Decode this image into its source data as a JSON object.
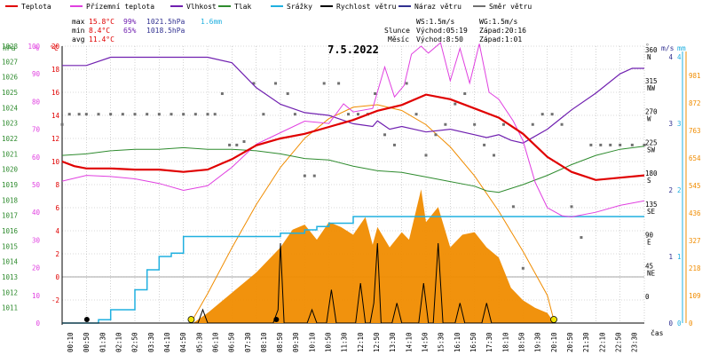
{
  "chart_data": {
    "type": "line",
    "title": "7.5.2022",
    "legend": [
      {
        "name": "Teplota",
        "color": "#e00000"
      },
      {
        "name": "Přízemní teplota",
        "color": "#e040e0"
      },
      {
        "name": "Vlhkost",
        "color": "#7020b0"
      },
      {
        "name": "Tlak",
        "color": "#2e8b2e"
      },
      {
        "name": "Srážky",
        "color": "#20b0e0"
      },
      {
        "name": "Rychlost větru",
        "color": "#000000"
      },
      {
        "name": "Náraz větru",
        "color": "#303090"
      },
      {
        "name": "Směr větru",
        "color": "#707070"
      }
    ],
    "stats": {
      "max": {
        "label": "max",
        "temp": "15.8°C",
        "hum": "99%",
        "press": "1021.5hPa",
        "rain": "1.6mm"
      },
      "min": {
        "label": "min",
        "temp": "8.4°C",
        "hum": "65%",
        "press": "1018.5hPa"
      },
      "avg": {
        "label": "avg",
        "temp": "11.4°C"
      }
    },
    "astro": {
      "ws": "WS:1.5m/s",
      "wg": "WG:1.5m/s",
      "sun_label": "Slunce",
      "sunrise": "Východ:05:19",
      "sunset": "Západ:20:16",
      "moon_label": "Měsíc",
      "moonrise": "Východ:8:50",
      "moonset": "Západ:1:01"
    },
    "axes": {
      "hpa": {
        "label": "hPa",
        "ticks": [
          "1011",
          "1012",
          "1013",
          "1014",
          "1015",
          "1016",
          "1017",
          "1018",
          "1019",
          "1020",
          "1021",
          "1022",
          "1023",
          "1024",
          "1025",
          "1026",
          "1027",
          "1028"
        ]
      },
      "pct": {
        "label": "%",
        "ticks": [
          "0",
          "10",
          "20",
          "30",
          "40",
          "50",
          "60",
          "70",
          "80",
          "90",
          "100"
        ]
      },
      "degc": {
        "label": "°C",
        "ticks": [
          "-2",
          "0",
          "2",
          "4",
          "6",
          "8",
          "10",
          "12",
          "14",
          "16",
          "18",
          "20"
        ]
      },
      "dir": {
        "label": "°",
        "ticks": [
          "0",
          "45",
          "90",
          "135",
          "180",
          "225",
          "270",
          "315",
          "360"
        ],
        "compass": [
          "",
          "NE",
          "E",
          "SE",
          "S",
          "SW",
          "W",
          "NW",
          "N"
        ]
      },
      "ms": {
        "label": "m/s",
        "ticks": [
          "0",
          "1",
          "2",
          "3",
          "4"
        ]
      },
      "mm": {
        "label": "mm",
        "ticks": [
          "0",
          "1",
          "2",
          "3",
          "4"
        ]
      },
      "rad": {
        "ticks": [
          "0",
          "109",
          "218",
          "327",
          "436",
          "545",
          "654",
          "763",
          "872",
          "981"
        ]
      },
      "time": {
        "label": "čas",
        "ticks": [
          "00:10",
          "00:50",
          "01:30",
          "02:10",
          "02:50",
          "03:30",
          "04:10",
          "04:50",
          "05:30",
          "06:10",
          "06:50",
          "07:30",
          "08:10",
          "08:50",
          "09:30",
          "10:10",
          "10:50",
          "11:30",
          "12:10",
          "12:50",
          "13:30",
          "14:10",
          "14:50",
          "15:30",
          "16:10",
          "16:50",
          "17:30",
          "18:10",
          "18:50",
          "19:30",
          "20:10",
          "20:50",
          "21:30",
          "22:10",
          "22:50",
          "23:30"
        ]
      }
    },
    "series": {
      "temperature": [
        [
          0,
          10
        ],
        [
          0.5,
          9.6
        ],
        [
          1,
          9.4
        ],
        [
          2,
          9.4
        ],
        [
          3,
          9.3
        ],
        [
          4,
          9.3
        ],
        [
          5,
          9.1
        ],
        [
          6,
          9.3
        ],
        [
          7,
          10.2
        ],
        [
          8,
          11.4
        ],
        [
          9,
          12
        ],
        [
          10,
          12.4
        ],
        [
          11,
          13
        ],
        [
          12,
          13.6
        ],
        [
          13,
          14.4
        ],
        [
          14,
          14.9
        ],
        [
          15,
          15.8
        ],
        [
          16,
          15.4
        ],
        [
          17,
          14.6
        ],
        [
          18,
          13.8
        ],
        [
          19,
          12.4
        ],
        [
          20,
          10.4
        ],
        [
          21,
          9.1
        ],
        [
          22,
          8.4
        ],
        [
          23,
          8.6
        ],
        [
          24,
          8.8
        ]
      ],
      "ground_temperature": [
        [
          0,
          8.3
        ],
        [
          1,
          8.8
        ],
        [
          2,
          8.7
        ],
        [
          3,
          8.5
        ],
        [
          4,
          8.1
        ],
        [
          5,
          7.5
        ],
        [
          6,
          7.9
        ],
        [
          7,
          9.5
        ],
        [
          8,
          11.5
        ],
        [
          9,
          12.5
        ],
        [
          10,
          13.5
        ],
        [
          11,
          13.3
        ],
        [
          11.6,
          15
        ],
        [
          12,
          14.3
        ],
        [
          12.8,
          14.6
        ],
        [
          13.3,
          18.2
        ],
        [
          13.7,
          15.6
        ],
        [
          14.1,
          16.6
        ],
        [
          14.4,
          19.3
        ],
        [
          14.8,
          20
        ],
        [
          15.1,
          19.4
        ],
        [
          15.6,
          20.3
        ],
        [
          16,
          17
        ],
        [
          16.4,
          19.8
        ],
        [
          16.8,
          16.8
        ],
        [
          17.2,
          20.2
        ],
        [
          17.6,
          16
        ],
        [
          18,
          15.4
        ],
        [
          18.6,
          13.5
        ],
        [
          19,
          11.8
        ],
        [
          19.5,
          8.2
        ],
        [
          20,
          6
        ],
        [
          20.6,
          5.3
        ],
        [
          21,
          5.2
        ],
        [
          22,
          5.6
        ],
        [
          23,
          6.2
        ],
        [
          24,
          6.6
        ]
      ],
      "humidity": [
        [
          0,
          93
        ],
        [
          1,
          93
        ],
        [
          2,
          96
        ],
        [
          3,
          96
        ],
        [
          4,
          96
        ],
        [
          5,
          96
        ],
        [
          6,
          96
        ],
        [
          7,
          94
        ],
        [
          8,
          85
        ],
        [
          9,
          79
        ],
        [
          10,
          76
        ],
        [
          11,
          75
        ],
        [
          12,
          72
        ],
        [
          12.8,
          71
        ],
        [
          13,
          73
        ],
        [
          13.5,
          70
        ],
        [
          14,
          71
        ],
        [
          14.5,
          70
        ],
        [
          15,
          69
        ],
        [
          16,
          70
        ],
        [
          17,
          68
        ],
        [
          17.5,
          67
        ],
        [
          18,
          68
        ],
        [
          18.5,
          66
        ],
        [
          19,
          65
        ],
        [
          20,
          70
        ],
        [
          21,
          77
        ],
        [
          22,
          83
        ],
        [
          23,
          90
        ],
        [
          23.5,
          92
        ],
        [
          24,
          92
        ]
      ],
      "pressure": [
        [
          0,
          1020.9
        ],
        [
          1,
          1021.0
        ],
        [
          2,
          1021.2
        ],
        [
          3,
          1021.3
        ],
        [
          4,
          1021.3
        ],
        [
          5,
          1021.4
        ],
        [
          6,
          1021.3
        ],
        [
          7,
          1021.3
        ],
        [
          8,
          1021.2
        ],
        [
          9,
          1021.0
        ],
        [
          10,
          1020.7
        ],
        [
          11,
          1020.6
        ],
        [
          12,
          1020.2
        ],
        [
          13,
          1019.9
        ],
        [
          14,
          1019.8
        ],
        [
          15,
          1019.5
        ],
        [
          16,
          1019.2
        ],
        [
          17,
          1018.9
        ],
        [
          17.5,
          1018.6
        ],
        [
          18,
          1018.5
        ],
        [
          19,
          1019.0
        ],
        [
          20,
          1019.6
        ],
        [
          21,
          1020.3
        ],
        [
          22,
          1020.9
        ],
        [
          23,
          1021.3
        ],
        [
          24,
          1021.5
        ]
      ],
      "rain": [
        [
          0,
          0
        ],
        [
          1.5,
          0.05
        ],
        [
          2,
          0.2
        ],
        [
          3,
          0.5
        ],
        [
          3.5,
          0.8
        ],
        [
          4,
          1.0
        ],
        [
          4.5,
          1.05
        ],
        [
          5,
          1.3
        ],
        [
          6,
          1.3
        ],
        [
          7,
          1.3
        ],
        [
          8,
          1.3
        ],
        [
          9,
          1.35
        ],
        [
          10,
          1.4
        ],
        [
          10.5,
          1.45
        ],
        [
          11,
          1.5
        ],
        [
          12,
          1.6
        ],
        [
          24,
          1.6
        ]
      ],
      "wind_speed": [
        [
          0,
          0
        ],
        [
          5.6,
          0
        ],
        [
          5.8,
          0.2
        ],
        [
          6,
          0
        ],
        [
          8.7,
          0
        ],
        [
          8.9,
          0.2
        ],
        [
          9,
          1.2
        ],
        [
          9.15,
          0
        ],
        [
          10.1,
          0
        ],
        [
          10.3,
          0.2
        ],
        [
          10.5,
          0
        ],
        [
          10.9,
          0
        ],
        [
          11.1,
          0.5
        ],
        [
          11.3,
          0
        ],
        [
          12.1,
          0
        ],
        [
          12.3,
          0.6
        ],
        [
          12.5,
          0
        ],
        [
          12.7,
          0
        ],
        [
          12.85,
          0.3
        ],
        [
          13,
          1.2
        ],
        [
          13.15,
          0
        ],
        [
          13.6,
          0
        ],
        [
          13.8,
          0.3
        ],
        [
          14,
          0
        ],
        [
          14.7,
          0
        ],
        [
          14.9,
          0.6
        ],
        [
          15.1,
          0
        ],
        [
          15.3,
          0
        ],
        [
          15.5,
          1.2
        ],
        [
          15.7,
          0
        ],
        [
          16.2,
          0
        ],
        [
          16.4,
          0.3
        ],
        [
          16.6,
          0
        ],
        [
          17.3,
          0
        ],
        [
          17.5,
          0.3
        ],
        [
          17.7,
          0
        ],
        [
          24,
          0
        ]
      ],
      "wind_direction": [
        [
          0,
          255
        ],
        [
          0.3,
          270
        ],
        [
          0.7,
          270
        ],
        [
          1,
          270
        ],
        [
          1.5,
          270
        ],
        [
          2,
          270
        ],
        [
          2.5,
          270
        ],
        [
          3,
          270
        ],
        [
          3.5,
          270
        ],
        [
          4,
          270
        ],
        [
          4.5,
          270
        ],
        [
          5,
          270
        ],
        [
          5.5,
          270
        ],
        [
          6,
          270
        ],
        [
          6.3,
          270
        ],
        [
          6.6,
          300
        ],
        [
          6.9,
          225
        ],
        [
          7.2,
          225
        ],
        [
          7.5,
          230
        ],
        [
          7.9,
          315
        ],
        [
          8.3,
          270
        ],
        [
          8.8,
          315
        ],
        [
          9.3,
          300
        ],
        [
          9.6,
          270
        ],
        [
          10,
          180
        ],
        [
          10.4,
          180
        ],
        [
          10.8,
          315
        ],
        [
          11.4,
          315
        ],
        [
          11.8,
          270
        ],
        [
          12.2,
          270
        ],
        [
          12.6,
          270
        ],
        [
          12.9,
          300
        ],
        [
          13.3,
          240
        ],
        [
          13.7,
          225
        ],
        [
          14.2,
          315
        ],
        [
          14.6,
          270
        ],
        [
          15,
          210
        ],
        [
          15.4,
          240
        ],
        [
          15.8,
          255
        ],
        [
          16.2,
          285
        ],
        [
          16.6,
          300
        ],
        [
          17,
          255
        ],
        [
          17.4,
          225
        ],
        [
          17.8,
          210
        ],
        [
          18.2,
          255
        ],
        [
          18.6,
          135
        ],
        [
          19,
          45
        ],
        [
          19.4,
          255
        ],
        [
          19.8,
          270
        ],
        [
          20.2,
          270
        ],
        [
          20.6,
          255
        ],
        [
          21,
          135
        ],
        [
          21.4,
          90
        ],
        [
          21.8,
          225
        ],
        [
          22.2,
          225
        ],
        [
          22.6,
          225
        ],
        [
          23,
          225
        ],
        [
          23.5,
          225
        ],
        [
          24,
          225
        ]
      ],
      "solar_radiation": [
        [
          0,
          0
        ],
        [
          5.4,
          0
        ],
        [
          6,
          40
        ],
        [
          7,
          120
        ],
        [
          8,
          200
        ],
        [
          9,
          300
        ],
        [
          9.5,
          370
        ],
        [
          10,
          390
        ],
        [
          10.5,
          330
        ],
        [
          11,
          400
        ],
        [
          11.5,
          380
        ],
        [
          12,
          350
        ],
        [
          12.5,
          420
        ],
        [
          12.8,
          310
        ],
        [
          13,
          380
        ],
        [
          13.5,
          300
        ],
        [
          14,
          360
        ],
        [
          14.3,
          330
        ],
        [
          14.8,
          530
        ],
        [
          15,
          400
        ],
        [
          15.5,
          460
        ],
        [
          16,
          300
        ],
        [
          16.5,
          350
        ],
        [
          17,
          360
        ],
        [
          17.5,
          300
        ],
        [
          18,
          260
        ],
        [
          18.5,
          140
        ],
        [
          19,
          90
        ],
        [
          19.5,
          60
        ],
        [
          20,
          40
        ],
        [
          20.3,
          0
        ],
        [
          24,
          0
        ]
      ],
      "theoretical_radiation": [
        [
          5.3,
          0
        ],
        [
          6,
          117
        ],
        [
          7,
          298
        ],
        [
          8,
          469
        ],
        [
          9,
          617
        ],
        [
          10,
          732
        ],
        [
          11,
          810
        ],
        [
          12,
          855
        ],
        [
          13,
          865
        ],
        [
          14,
          842
        ],
        [
          15,
          786
        ],
        [
          16,
          698
        ],
        [
          17,
          583
        ],
        [
          18,
          443
        ],
        [
          19,
          284
        ],
        [
          20,
          110
        ],
        [
          20.3,
          0
        ]
      ]
    },
    "markers": {
      "sunrise_hour": 5.32,
      "sunset_hour": 20.27,
      "moonrise_hour": 8.83,
      "moonset_hour": 1.02,
      "sun_color": "#f0e000",
      "moon_color": "#000000"
    },
    "colors": {
      "radiation": "#f08c00",
      "theory": "#f08c00",
      "rain_axis": "#20b0e0",
      "rad_axis": "#f08c00",
      "grid": "#b4b4b4",
      "dir": "#707070"
    }
  }
}
